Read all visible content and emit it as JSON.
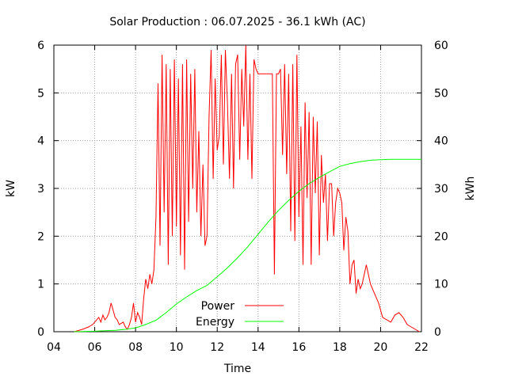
{
  "chart_data": {
    "type": "line",
    "title": "Solar Production : 06.07.2025 - 36.1 kWh (AC)",
    "xlabel": "Time",
    "ylabel_left": "kW",
    "ylabel_right": "kWh",
    "xlim": [
      4,
      22
    ],
    "ylim_left": [
      0,
      6
    ],
    "ylim_right": [
      0,
      60
    ],
    "x_ticks": [
      "04",
      "06",
      "08",
      "10",
      "12",
      "14",
      "16",
      "18",
      "20",
      "22"
    ],
    "y_ticks_left": [
      "0",
      "1",
      "2",
      "3",
      "4",
      "5",
      "6"
    ],
    "y_ticks_right": [
      "0",
      "10",
      "20",
      "30",
      "40",
      "50",
      "60"
    ],
    "grid": true,
    "legend_position": "bottom-center",
    "series": [
      {
        "name": "Power",
        "axis": "left",
        "color": "#ff0000",
        "x": [
          5.0,
          5.4,
          5.7,
          5.9,
          6.1,
          6.2,
          6.3,
          6.4,
          6.5,
          6.6,
          6.7,
          6.8,
          6.9,
          7.0,
          7.1,
          7.2,
          7.4,
          7.5,
          7.6,
          7.7,
          7.8,
          7.9,
          8.0,
          8.1,
          8.2,
          8.3,
          8.4,
          8.5,
          8.6,
          8.7,
          8.8,
          8.9,
          9.0,
          9.1,
          9.2,
          9.3,
          9.4,
          9.5,
          9.6,
          9.7,
          9.8,
          9.9,
          10.0,
          10.1,
          10.2,
          10.3,
          10.4,
          10.5,
          10.6,
          10.7,
          10.8,
          10.9,
          11.0,
          11.1,
          11.2,
          11.3,
          11.4,
          11.5,
          11.6,
          11.7,
          11.8,
          11.9,
          12.0,
          12.1,
          12.2,
          12.3,
          12.4,
          12.5,
          12.6,
          12.7,
          12.8,
          12.9,
          13.0,
          13.1,
          13.2,
          13.3,
          13.4,
          13.5,
          13.6,
          13.7,
          13.8,
          13.9,
          14.0,
          14.1,
          14.2,
          14.3,
          14.4,
          14.5,
          14.6,
          14.7,
          14.8,
          14.9,
          15.0,
          15.1,
          15.2,
          15.3,
          15.4,
          15.5,
          15.6,
          15.7,
          15.8,
          15.9,
          16.0,
          16.1,
          16.2,
          16.3,
          16.4,
          16.5,
          16.6,
          16.7,
          16.8,
          16.9,
          17.0,
          17.1,
          17.2,
          17.3,
          17.4,
          17.5,
          17.6,
          17.7,
          17.8,
          17.9,
          18.0,
          18.1,
          18.2,
          18.3,
          18.4,
          18.5,
          18.6,
          18.7,
          18.8,
          18.9,
          19.0,
          19.1,
          19.2,
          19.3,
          19.4,
          19.5,
          19.7,
          19.9,
          20.1,
          20.3,
          20.5,
          20.7,
          20.9,
          21.1,
          21.3,
          21.5,
          21.7,
          21.9
        ],
        "y": [
          0.0,
          0.05,
          0.1,
          0.15,
          0.25,
          0.3,
          0.2,
          0.35,
          0.25,
          0.3,
          0.4,
          0.6,
          0.45,
          0.3,
          0.25,
          0.15,
          0.2,
          0.1,
          0.05,
          0.15,
          0.3,
          0.6,
          0.2,
          0.4,
          0.3,
          0.15,
          0.7,
          1.1,
          0.9,
          1.2,
          1.0,
          1.3,
          2.4,
          5.2,
          1.8,
          5.8,
          2.5,
          5.6,
          1.4,
          5.5,
          2.0,
          5.7,
          2.2,
          5.3,
          1.6,
          5.6,
          1.3,
          5.7,
          2.3,
          5.4,
          3.0,
          5.5,
          2.5,
          4.2,
          2.0,
          3.5,
          1.8,
          2.0,
          4.5,
          5.9,
          3.2,
          5.3,
          3.8,
          4.1,
          5.8,
          3.5,
          5.9,
          4.8,
          3.2,
          5.4,
          3.0,
          5.6,
          5.8,
          3.6,
          5.5,
          4.3,
          6.0,
          3.6,
          5.4,
          3.2,
          5.7,
          5.5,
          5.4,
          5.4,
          5.4,
          5.4,
          5.4,
          5.4,
          5.4,
          5.4,
          1.2,
          5.4,
          5.4,
          5.5,
          3.7,
          5.6,
          3.3,
          5.4,
          2.1,
          5.6,
          1.9,
          5.8,
          2.4,
          4.3,
          1.4,
          4.8,
          2.8,
          4.6,
          1.4,
          4.5,
          2.9,
          4.4,
          1.6,
          3.7,
          2.7,
          3.3,
          1.9,
          3.1,
          3.1,
          2.0,
          2.7,
          3.0,
          2.9,
          2.7,
          1.7,
          2.4,
          2.1,
          1.0,
          1.4,
          1.5,
          0.8,
          1.1,
          0.9,
          1.0,
          1.2,
          1.4,
          1.2,
          1.0,
          0.8,
          0.6,
          0.3,
          0.25,
          0.2,
          0.35,
          0.4,
          0.3,
          0.15,
          0.1,
          0.05,
          0.0
        ]
      },
      {
        "name": "Energy",
        "axis": "right",
        "color": "#00ff00",
        "x": [
          5.0,
          6.0,
          7.0,
          7.5,
          8.0,
          8.5,
          9.0,
          9.5,
          10.0,
          10.5,
          11.0,
          11.5,
          12.0,
          12.5,
          13.0,
          13.5,
          14.0,
          14.5,
          15.0,
          15.5,
          16.0,
          16.5,
          17.0,
          17.5,
          18.0,
          18.5,
          19.0,
          19.5,
          20.0,
          20.5,
          21.0,
          21.5,
          22.0
        ],
        "y": [
          0.0,
          0.1,
          0.3,
          0.5,
          0.8,
          1.5,
          2.4,
          4.0,
          5.8,
          7.3,
          8.6,
          9.7,
          11.5,
          13.4,
          15.5,
          17.8,
          20.4,
          23.0,
          25.4,
          27.5,
          29.4,
          31.0,
          32.3,
          33.5,
          34.6,
          35.2,
          35.6,
          35.9,
          36.0,
          36.1,
          36.1,
          36.1,
          36.1
        ]
      }
    ]
  }
}
